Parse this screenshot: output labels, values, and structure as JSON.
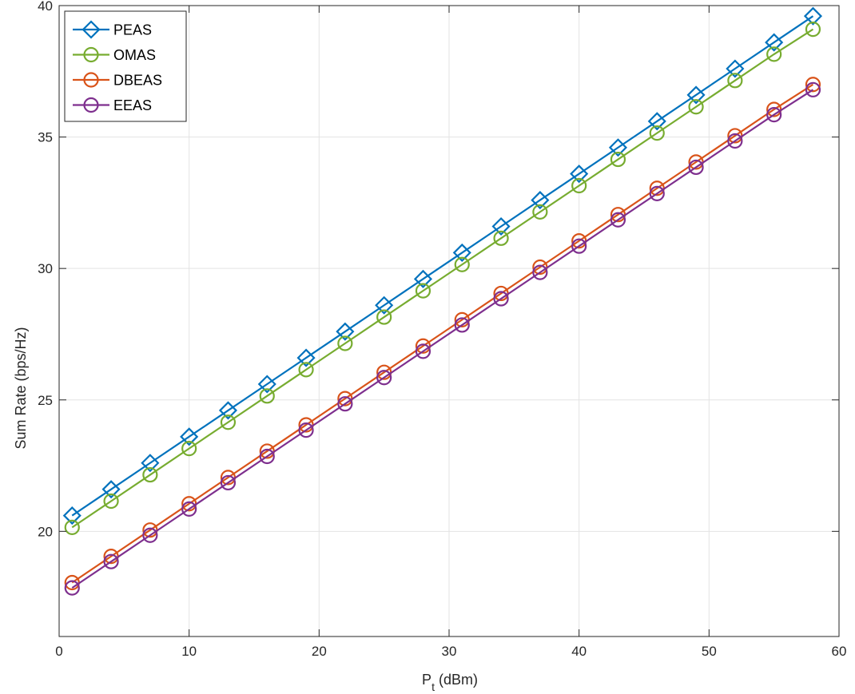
{
  "chart_data": {
    "type": "line",
    "xlabel": "P",
    "xlabel_sub": "t",
    "xlabel_unit": " (dBm)",
    "ylabel": "Sum Rate (bps/Hz)",
    "xlim": [
      0,
      60
    ],
    "ylim": [
      16,
      40
    ],
    "xticks": [
      0,
      10,
      20,
      30,
      40,
      50,
      60
    ],
    "yticks": [
      20,
      25,
      30,
      35,
      40
    ],
    "grid": true,
    "legend_position": "top-left",
    "x": [
      1,
      4,
      7,
      10,
      13,
      16,
      19,
      22,
      25,
      28,
      31,
      34,
      37,
      40,
      43,
      46,
      49,
      52,
      55,
      58
    ],
    "series": [
      {
        "name": "PEAS",
        "color": "#0072bd",
        "marker": "diamond",
        "values": [
          20.6,
          21.6,
          22.6,
          23.6,
          24.6,
          25.6,
          26.6,
          27.6,
          28.6,
          29.6,
          30.6,
          31.6,
          32.6,
          33.6,
          34.6,
          35.6,
          36.6,
          37.6,
          38.6,
          39.6
        ]
      },
      {
        "name": "OMAS",
        "color": "#77ac30",
        "marker": "circle",
        "values": [
          20.15,
          21.15,
          22.15,
          23.15,
          24.15,
          25.15,
          26.15,
          27.15,
          28.15,
          29.15,
          30.15,
          31.15,
          32.15,
          33.15,
          34.15,
          35.15,
          36.15,
          37.15,
          38.15,
          39.1
        ]
      },
      {
        "name": "DBEAS",
        "color": "#d95319",
        "marker": "circle",
        "values": [
          18.05,
          19.05,
          20.05,
          21.05,
          22.05,
          23.05,
          24.05,
          25.05,
          26.05,
          27.05,
          28.05,
          29.05,
          30.05,
          31.05,
          32.05,
          33.05,
          34.05,
          35.05,
          36.05,
          37.0
        ]
      },
      {
        "name": "EEAS",
        "color": "#7e2f8e",
        "marker": "circle",
        "values": [
          17.85,
          18.85,
          19.85,
          20.85,
          21.85,
          22.85,
          23.85,
          24.85,
          25.85,
          26.85,
          27.85,
          28.85,
          29.85,
          30.85,
          31.85,
          32.85,
          33.85,
          34.85,
          35.85,
          36.8
        ]
      }
    ]
  }
}
